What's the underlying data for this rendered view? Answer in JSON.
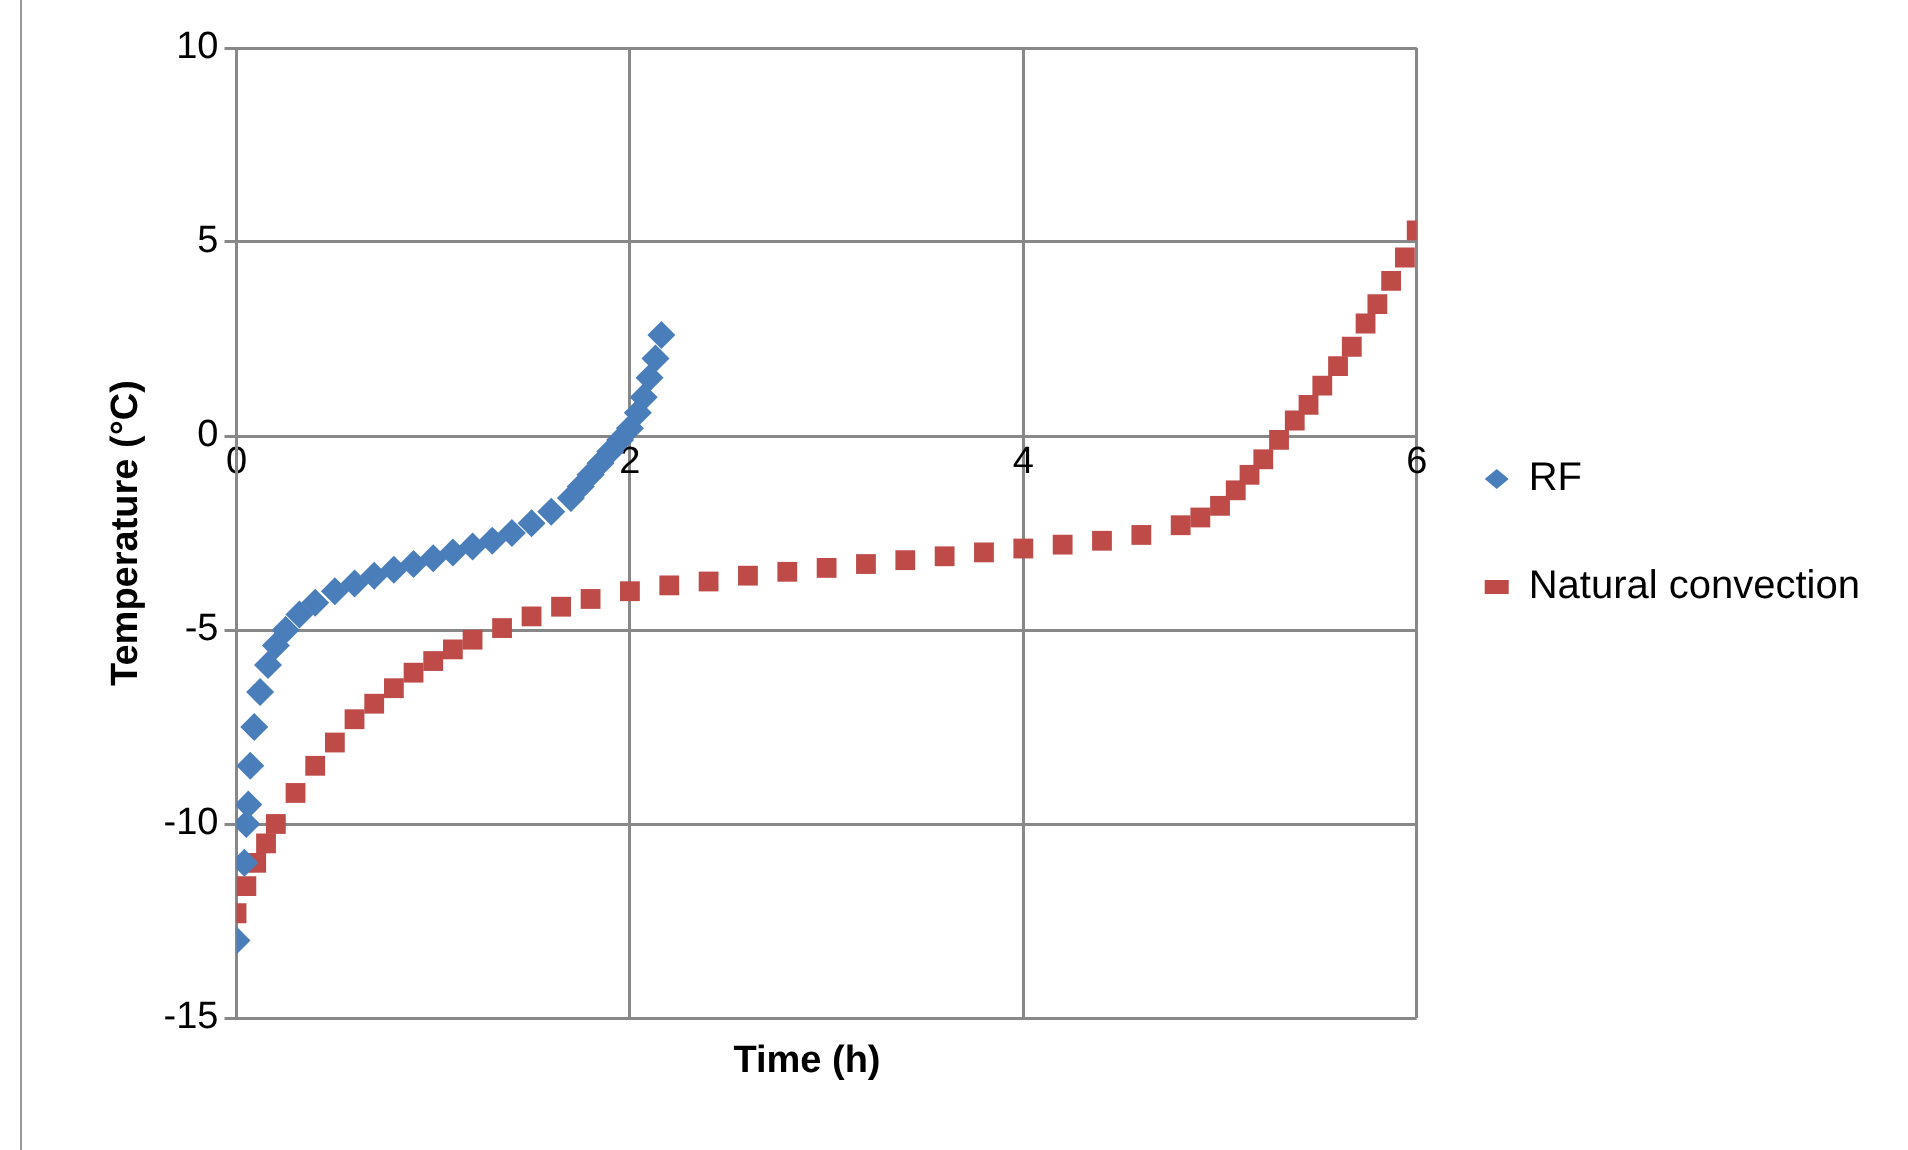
{
  "chart_data": {
    "type": "scatter",
    "xlabel": "Time (h)",
    "ylabel": "Temperature (°C)",
    "xlim": [
      0,
      6
    ],
    "xticks": [
      0,
      2,
      4,
      6
    ],
    "ylim": [
      -15,
      10
    ],
    "yticks": [
      -15,
      -10,
      -5,
      0,
      5,
      10
    ],
    "grid": true,
    "legend": "right",
    "series": [
      {
        "name": "RF",
        "color": "#4a7ebb",
        "marker": "diamond",
        "x": [
          0,
          0.04,
          0.05,
          0.06,
          0.07,
          0.09,
          0.12,
          0.16,
          0.2,
          0.25,
          0.32,
          0.4,
          0.5,
          0.6,
          0.7,
          0.8,
          0.9,
          1.0,
          1.1,
          1.2,
          1.3,
          1.4,
          1.5,
          1.6,
          1.7,
          1.75,
          1.8,
          1.85,
          1.9,
          1.95,
          2.0,
          2.04,
          2.07,
          2.1,
          2.13,
          2.16
        ],
        "values": [
          -13,
          -11,
          -10,
          -9.5,
          -8.5,
          -7.5,
          -6.6,
          -5.9,
          -5.4,
          -5.0,
          -4.6,
          -4.3,
          -4.0,
          -3.8,
          -3.6,
          -3.45,
          -3.3,
          -3.15,
          -3.0,
          -2.85,
          -2.7,
          -2.5,
          -2.25,
          -1.95,
          -1.6,
          -1.3,
          -1.0,
          -0.7,
          -0.4,
          -0.1,
          0.2,
          0.6,
          1.0,
          1.5,
          2.0,
          2.6
        ]
      },
      {
        "name": "Natural convection",
        "color": "#be4b48",
        "marker": "square",
        "x": [
          0,
          0.05,
          0.1,
          0.15,
          0.2,
          0.3,
          0.4,
          0.5,
          0.6,
          0.7,
          0.8,
          0.9,
          1.0,
          1.1,
          1.2,
          1.35,
          1.5,
          1.65,
          1.8,
          2.0,
          2.2,
          2.4,
          2.6,
          2.8,
          3.0,
          3.2,
          3.4,
          3.6,
          3.8,
          4.0,
          4.2,
          4.4,
          4.6,
          4.8,
          4.9,
          5.0,
          5.08,
          5.15,
          5.22,
          5.3,
          5.38,
          5.45,
          5.52,
          5.6,
          5.67,
          5.74,
          5.8,
          5.87,
          5.94,
          6.0
        ],
        "values": [
          -12.3,
          -11.6,
          -11,
          -10.5,
          -10,
          -9.2,
          -8.5,
          -7.9,
          -7.3,
          -6.9,
          -6.5,
          -6.1,
          -5.8,
          -5.5,
          -5.25,
          -4.95,
          -4.65,
          -4.4,
          -4.2,
          -4.0,
          -3.85,
          -3.75,
          -3.6,
          -3.5,
          -3.4,
          -3.3,
          -3.2,
          -3.1,
          -3.0,
          -2.9,
          -2.8,
          -2.7,
          -2.55,
          -2.3,
          -2.1,
          -1.8,
          -1.4,
          -1.0,
          -0.6,
          -0.1,
          0.4,
          0.8,
          1.3,
          1.8,
          2.3,
          2.9,
          3.4,
          4.0,
          4.6,
          5.3
        ]
      }
    ]
  }
}
